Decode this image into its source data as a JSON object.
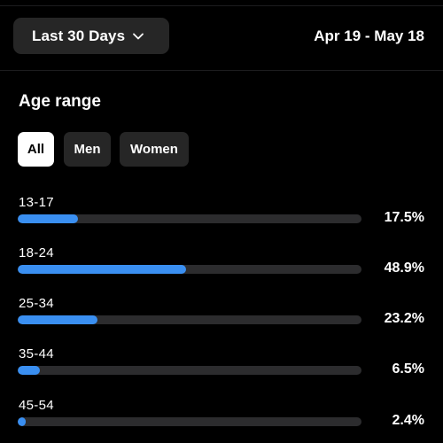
{
  "header": {
    "date_filter_label": "Last 30 Days",
    "date_range": "Apr 19 - May 18",
    "chevron_icon": "chevron-down-icon"
  },
  "section": {
    "title": "Age range"
  },
  "filters": [
    {
      "label": "All",
      "selected": true
    },
    {
      "label": "Men",
      "selected": false
    },
    {
      "label": "Women",
      "selected": false
    }
  ],
  "age_ranges": [
    {
      "label": "13-17",
      "percent_text": "17.5%",
      "percent": 17.5
    },
    {
      "label": "18-24",
      "percent_text": "48.9%",
      "percent": 48.9
    },
    {
      "label": "25-34",
      "percent_text": "23.2%",
      "percent": 23.2
    },
    {
      "label": "35-44",
      "percent_text": "6.5%",
      "percent": 6.5
    },
    {
      "label": "45-54",
      "percent_text": "2.4%",
      "percent": 2.4
    }
  ],
  "colors": {
    "background": "#000000",
    "accent_bar": "#3a8ff1",
    "track": "#2c2c2e",
    "chip": "#262626",
    "selected_chip": "#ffffff"
  }
}
